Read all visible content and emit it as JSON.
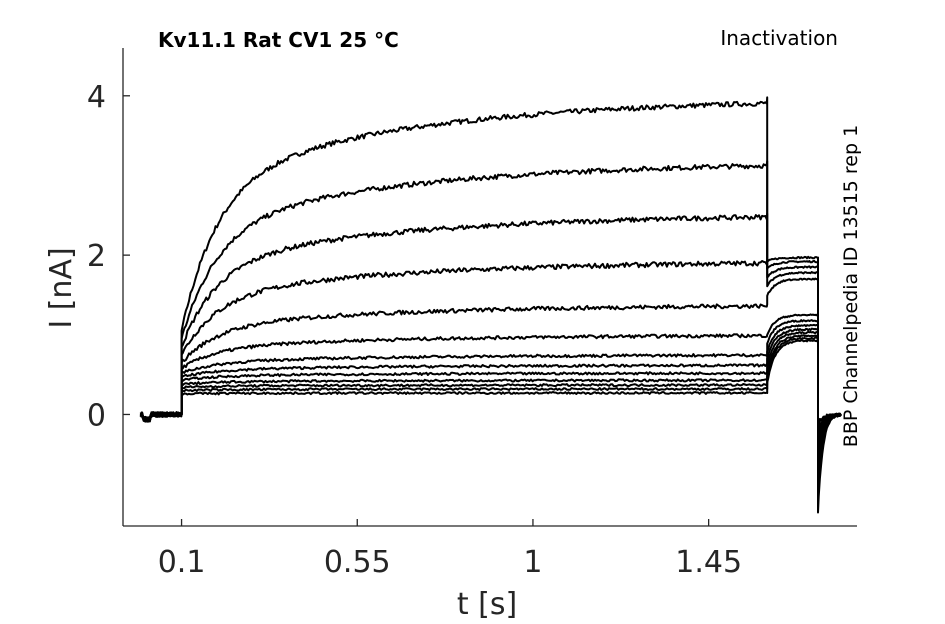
{
  "title": "Kv11.1  Rat  CV1  25 °C",
  "protocol": "Inactivation",
  "side_label": "BBP Channelpedia ID 13515 rep 1",
  "chart_data": {
    "type": "line",
    "xlabel": "t [s]",
    "ylabel": "I [nA]",
    "xlim": [
      -0.05,
      1.83
    ],
    "ylim": [
      -1.4,
      4.6
    ],
    "xticks": [
      0.1,
      0.55,
      1,
      1.45
    ],
    "xtick_labels": [
      "0.1",
      "0.55",
      "1",
      "1.45"
    ],
    "yticks": [
      0,
      2,
      4
    ],
    "ytick_labels": [
      "0",
      "2",
      "4"
    ],
    "grid": false,
    "legend": "none",
    "line_color": "#000000",
    "phases_s": {
      "step_on": 0.1,
      "step_off": 1.6,
      "tail_end": 1.73
    },
    "step_sweeps": [
      {
        "start": 1.05,
        "end": 3.98,
        "tail_level": 1.97,
        "tail_trough": -1.23
      },
      {
        "start": 0.95,
        "end": 3.18,
        "tail_level": 1.92,
        "tail_trough": -0.95
      },
      {
        "start": 0.85,
        "end": 2.52,
        "tail_level": 1.85,
        "tail_trough": -0.85
      },
      {
        "start": 0.75,
        "end": 1.93,
        "tail_level": 1.78,
        "tail_trough": -0.75
      },
      {
        "start": 0.65,
        "end": 1.38,
        "tail_level": 1.7,
        "tail_trough": -0.65
      },
      {
        "start": 0.58,
        "end": 1.0,
        "tail_level": 1.25,
        "tail_trough": -0.55
      },
      {
        "start": 0.52,
        "end": 0.75,
        "tail_level": 1.18,
        "tail_trough": -0.45
      },
      {
        "start": 0.47,
        "end": 0.62,
        "tail_level": 1.12,
        "tail_trough": -0.38
      },
      {
        "start": 0.43,
        "end": 0.52,
        "tail_level": 1.07,
        "tail_trough": -0.3
      },
      {
        "start": 0.38,
        "end": 0.43,
        "tail_level": 1.03,
        "tail_trough": -0.25
      },
      {
        "start": 0.34,
        "end": 0.37,
        "tail_level": 0.99,
        "tail_trough": -0.2
      },
      {
        "start": 0.3,
        "end": 0.32,
        "tail_level": 0.96,
        "tail_trough": -0.15
      },
      {
        "start": 0.26,
        "end": 0.27,
        "tail_level": 0.93,
        "tail_trough": -0.1
      }
    ]
  }
}
